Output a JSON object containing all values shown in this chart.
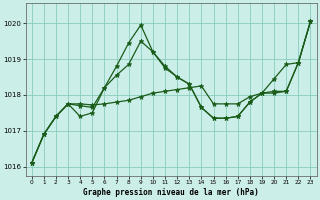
{
  "xlabel": "Graphe pression niveau de la mer (hPa)",
  "bg_color": "#cceee8",
  "grid_color": "#88ccbb",
  "line_color": "#1a5c1a",
  "xlim": [
    -0.5,
    23.5
  ],
  "ylim": [
    1015.75,
    1020.55
  ],
  "yticks": [
    1016,
    1017,
    1018,
    1019,
    1020
  ],
  "xticks": [
    0,
    1,
    2,
    3,
    4,
    5,
    6,
    7,
    8,
    9,
    10,
    11,
    12,
    13,
    14,
    15,
    16,
    17,
    18,
    19,
    20,
    21,
    22,
    23
  ],
  "curve1": [
    1016.1,
    1016.9,
    1017.4,
    1017.75,
    1017.75,
    1017.72,
    1017.75,
    1017.8,
    1017.85,
    1017.95,
    1018.05,
    1018.1,
    1018.15,
    1018.2,
    1018.25,
    1017.75,
    1017.75,
    1017.75,
    1017.95,
    1018.05,
    1018.05,
    1018.1,
    1018.9,
    1020.05
  ],
  "curve2": [
    1016.1,
    1016.9,
    1017.4,
    1017.75,
    1017.7,
    1017.65,
    1018.2,
    1018.55,
    1018.85,
    1019.5,
    1019.2,
    1018.8,
    1018.5,
    1018.3,
    1017.65,
    1017.35,
    1017.35,
    1017.4,
    1017.8,
    1018.05,
    1018.1,
    1018.1,
    1018.9,
    1020.05
  ],
  "curve3": [
    1016.1,
    1016.9,
    1017.4,
    1017.75,
    1017.4,
    1017.5,
    1018.2,
    1018.8,
    1019.45,
    1019.95,
    1019.2,
    1018.75,
    1018.5,
    1018.3,
    1017.65,
    1017.35,
    1017.35,
    1017.4,
    1017.8,
    1018.05,
    1018.45,
    1018.85,
    1018.9,
    1020.05
  ]
}
